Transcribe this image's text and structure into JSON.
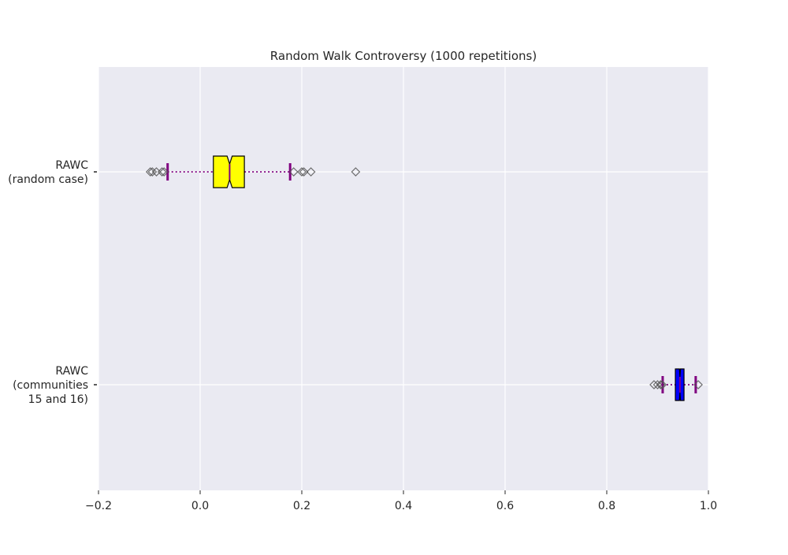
{
  "chart_data": {
    "type": "boxplot",
    "orientation": "horizontal",
    "title": "Random Walk Controversy (1000 repetitions)",
    "xlabel": "",
    "ylabel": "",
    "xlim": [
      -0.2,
      1.0
    ],
    "x_ticks": [
      -0.2,
      0.0,
      0.2,
      0.4,
      0.6,
      0.8,
      1.0
    ],
    "x_tick_labels": [
      "−0.2",
      "0.0",
      "0.2",
      "0.4",
      "0.6",
      "0.8",
      "1.0"
    ],
    "grid": true,
    "colors": {
      "background": "#eaeaf2",
      "grid": "#ffffff",
      "whisker": "#800080",
      "median": "#800080",
      "flier": "#555555"
    },
    "series": [
      {
        "label_lines": [
          "RAWC",
          "(random case)"
        ],
        "box_color": "#ffff00",
        "q1": 0.026,
        "median": 0.058,
        "q3": 0.087,
        "notch_low": 0.053,
        "notch_high": 0.063,
        "whisker_low": -0.064,
        "whisker_high": 0.177,
        "fliers": [
          -0.098,
          -0.094,
          -0.086,
          -0.075,
          -0.071,
          0.184,
          0.2,
          0.204,
          0.218,
          0.306
        ]
      },
      {
        "label_lines": [
          "RAWC",
          "(communities",
          "15 and 16)"
        ],
        "box_color": "#0000ff",
        "q1": 0.935,
        "median": 0.944,
        "q3": 0.952,
        "notch_low": 0.943,
        "notch_high": 0.945,
        "whisker_low": 0.91,
        "whisker_high": 0.975,
        "fliers": [
          0.893,
          0.9,
          0.906,
          0.909,
          0.98
        ]
      }
    ]
  }
}
